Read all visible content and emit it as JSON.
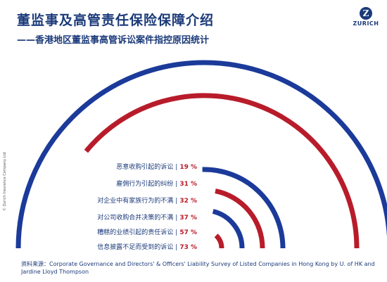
{
  "header": {
    "title": "董监事及高管责任保险保障介绍",
    "subtitle": "——香港地区董监事高管诉讼案件指控原因统计"
  },
  "logo": {
    "mark": "Z",
    "text": "ZURICH"
  },
  "chart_data": {
    "type": "radial-bar",
    "categories": [
      "恶意收购引起的诉讼",
      "雇佣行为引起的纠纷",
      "对企业中有家族行为的不满",
      "对公司收购合并决策的不满",
      "糟糕的业绩引起的责任诉讼",
      "信息披露不足而受到的诉讼"
    ],
    "values": [
      19,
      31,
      32,
      37,
      57,
      73
    ],
    "value_labels": [
      "19 %",
      "31 %",
      "32 %",
      "37 %",
      "57 %",
      "73 %"
    ],
    "colors": [
      "#b81c2a",
      "#1b3a9a",
      "#b81c2a",
      "#1b3a9a",
      "#b81c2a",
      "#1b3a9a"
    ]
  },
  "footer": {
    "source": "资料来源：Corporate Governance and Directors'   & Officers'  Liability Survey of Listed Companies in Hong Kong by U. of HK and Jardine Lloyd Thompson",
    "copyright": "© Zurich Insurance Company Ltd"
  }
}
